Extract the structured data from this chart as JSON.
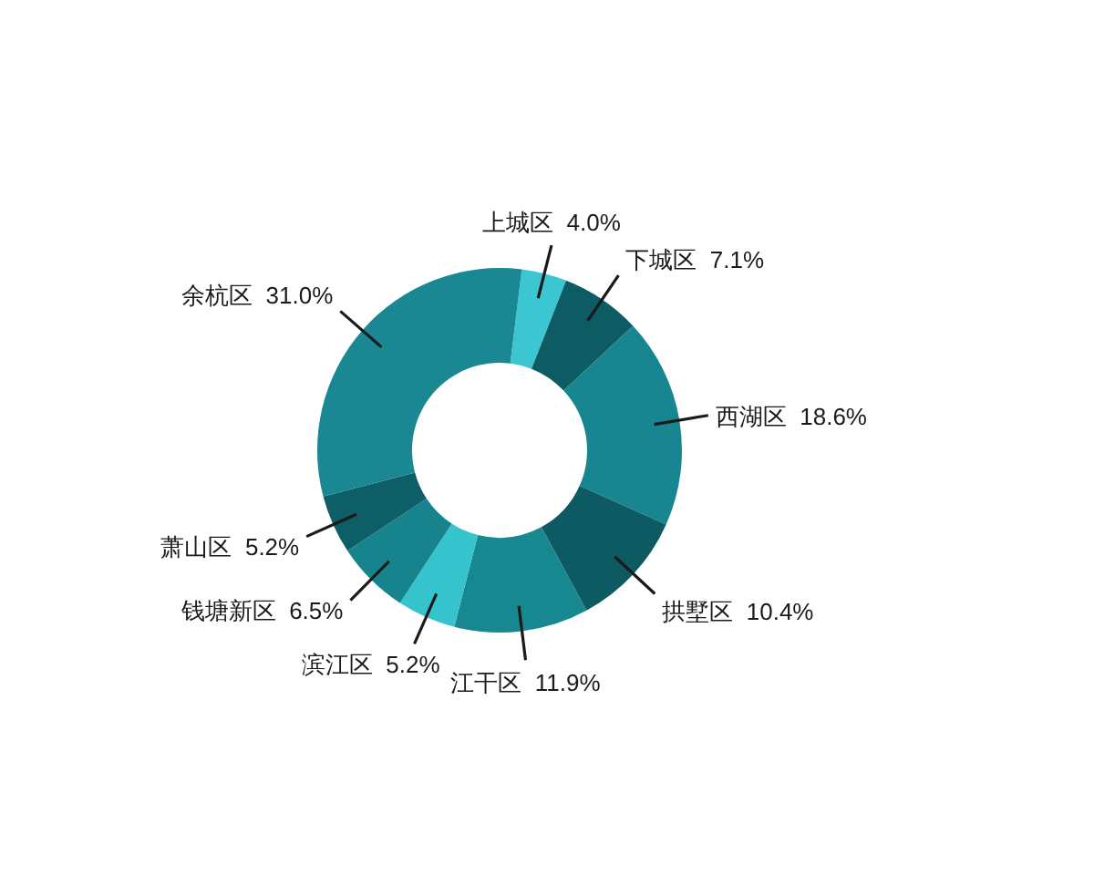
{
  "chart_data": {
    "type": "donut",
    "categories": [
      "上城区",
      "下城区",
      "西湖区",
      "拱墅区",
      "江干区",
      "滨江区",
      "钱塘新区",
      "萧山区",
      "余杭区"
    ],
    "values": [
      4.0,
      7.1,
      18.6,
      10.4,
      11.9,
      5.2,
      6.5,
      5.2,
      31.0
    ],
    "value_labels": [
      "4.0%",
      "7.1%",
      "18.6%",
      "10.4%",
      "11.9%",
      "5.2%",
      "6.5%",
      "5.2%",
      "31.0%"
    ],
    "colors": [
      "#3cc6d1",
      "#0d5b63",
      "#188690",
      "#0d5a62",
      "#178790",
      "#35c3cd",
      "#16838d",
      "#0e5e67",
      "#1a8892"
    ]
  }
}
